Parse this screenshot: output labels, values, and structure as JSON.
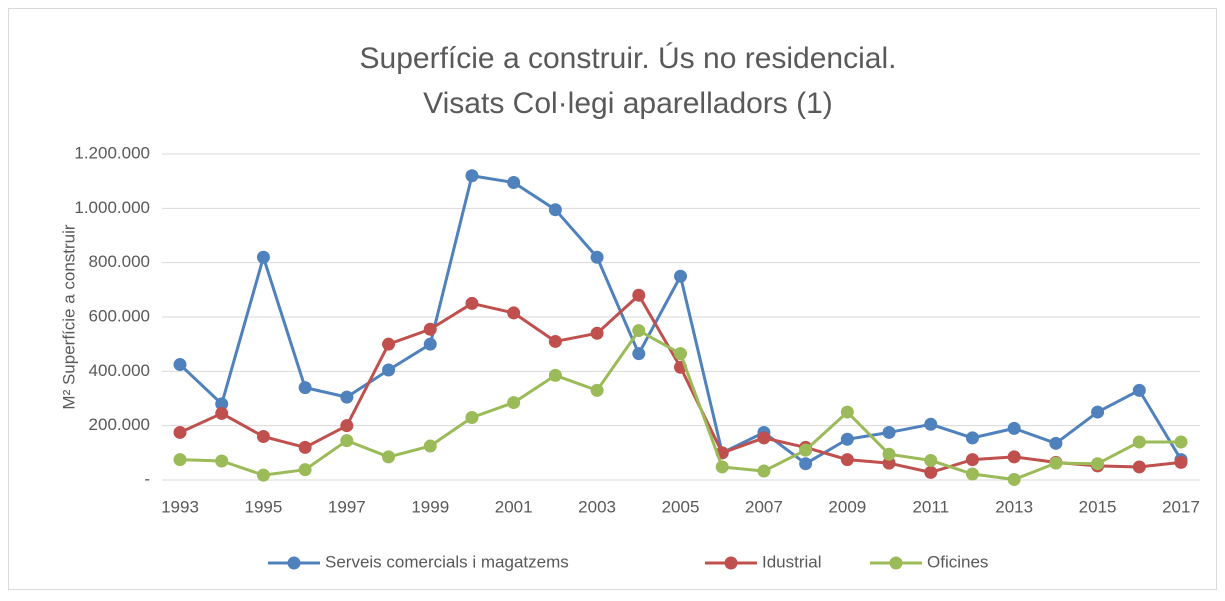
{
  "chart_data": {
    "type": "line",
    "title": "Superfície a construir. Ús no residencial.",
    "subtitle": "Visats Col·legi aparelladors (1)",
    "y_label": "M² Superfície a construir",
    "categories": [
      "1993",
      null,
      "1995",
      null,
      "1997",
      null,
      "1999",
      null,
      "2001",
      null,
      "2003",
      null,
      "2005",
      null,
      "2007",
      null,
      "2009",
      null,
      "2011",
      null,
      "2013",
      null,
      "2015",
      null,
      "2017"
    ],
    "series": [
      {
        "name": "Serveis comercials i magatzems",
        "color": "#4f81bd",
        "values": [
          425000,
          280000,
          820000,
          340000,
          305000,
          405000,
          500000,
          1120000,
          1095000,
          995000,
          820000,
          465000,
          750000,
          100000,
          175000,
          60000,
          150000,
          175000,
          205000,
          155000,
          190000,
          135000,
          250000,
          330000,
          75000
        ]
      },
      {
        "name": "Idustrial",
        "color": "#c0504d",
        "values": [
          175000,
          245000,
          160000,
          120000,
          200000,
          500000,
          555000,
          650000,
          615000,
          510000,
          540000,
          680000,
          415000,
          100000,
          155000,
          120000,
          75000,
          62000,
          28000,
          75000,
          85000,
          65000,
          52000,
          48000,
          65000
        ]
      },
      {
        "name": "Oficines",
        "color": "#9bbb59",
        "values": [
          75000,
          70000,
          18000,
          38000,
          145000,
          85000,
          125000,
          230000,
          285000,
          385000,
          330000,
          550000,
          465000,
          48000,
          33000,
          110000,
          250000,
          95000,
          72000,
          22000,
          2000,
          62000,
          60000,
          140000,
          140000
        ]
      }
    ],
    "ylim": [
      0,
      1200000
    ],
    "yticks": [
      {
        "value": 0,
        "label": "-"
      },
      {
        "value": 200000,
        "label": "200.000"
      },
      {
        "value": 400000,
        "label": "400.000"
      },
      {
        "value": 600000,
        "label": "600.000"
      },
      {
        "value": 800000,
        "label": "800.000"
      },
      {
        "value": 1000000,
        "label": "1.000.000"
      },
      {
        "value": 1200000,
        "label": "1.200.000"
      }
    ],
    "grid": true,
    "legend": "bottom"
  }
}
